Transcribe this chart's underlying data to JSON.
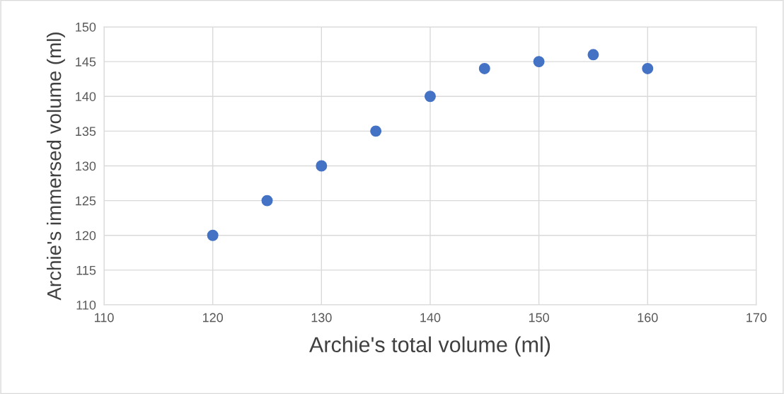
{
  "chart_data": {
    "type": "scatter",
    "xlabel": "Archie's total volume (ml)",
    "ylabel": "Archie's immersed volume (ml)",
    "x": [
      120,
      125,
      130,
      135,
      140,
      145,
      150,
      155,
      160
    ],
    "series": [
      {
        "color": "#4472c4",
        "values": [
          120,
          125,
          130,
          135,
          140,
          144,
          145,
          146,
          144
        ]
      }
    ],
    "xlim": [
      110,
      170
    ],
    "xticks": [
      110,
      120,
      130,
      140,
      150,
      160,
      170
    ],
    "ylim": [
      110,
      150
    ],
    "yticks": [
      110,
      115,
      120,
      125,
      130,
      135,
      140,
      145,
      150
    ],
    "grid": true,
    "marker": "circle"
  }
}
